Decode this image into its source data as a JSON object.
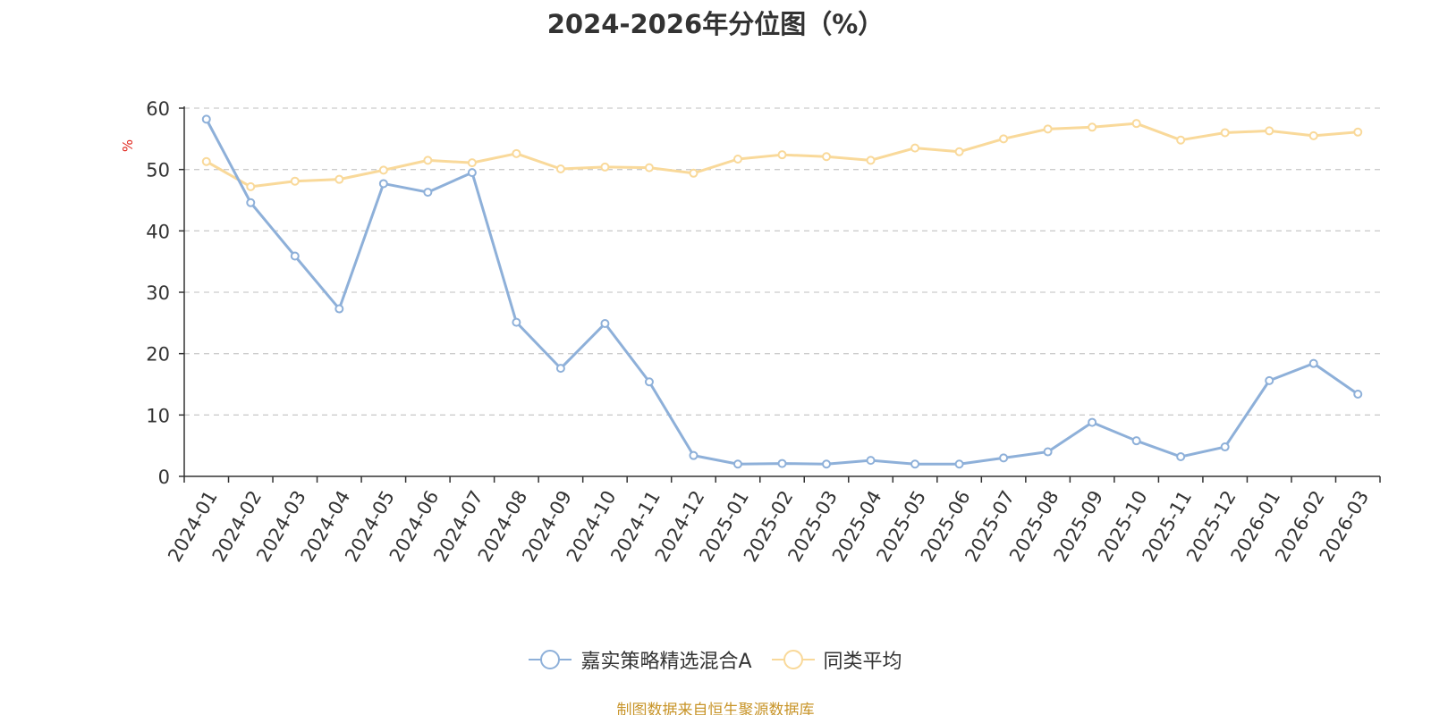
{
  "chart_data": {
    "type": "line",
    "title": "2024-2026年分位图（%）",
    "ylabel": "%",
    "xlabel": "",
    "ylim": [
      0,
      60
    ],
    "yticks": [
      0,
      10,
      20,
      30,
      40,
      50,
      60
    ],
    "grid": true,
    "legend_position": "bottom",
    "categories": [
      "2024-01",
      "2024-02",
      "2024-03",
      "2024-04",
      "2024-05",
      "2024-06",
      "2024-07",
      "2024-08",
      "2024-09",
      "2024-10",
      "2024-11",
      "2024-12",
      "2025-01",
      "2025-02",
      "2025-03",
      "2025-04",
      "2025-05",
      "2025-06",
      "2025-07",
      "2025-08",
      "2025-09",
      "2025-10",
      "2025-11",
      "2025-12",
      "2026-01",
      "2026-02",
      "2026-03"
    ],
    "series": [
      {
        "name": "嘉实策略精选混合A",
        "color": "#8eb0d9",
        "values": [
          58.2,
          44.6,
          35.9,
          27.3,
          47.7,
          46.3,
          49.5,
          25.1,
          17.6,
          24.9,
          15.4,
          3.4,
          2.0,
          2.1,
          2.0,
          2.6,
          2.0,
          2.0,
          3.0,
          4.0,
          8.8,
          5.8,
          3.2,
          4.8,
          15.6,
          18.4,
          13.4
        ]
      },
      {
        "name": "同类平均",
        "color": "#f9d99a",
        "values": [
          51.3,
          47.2,
          48.1,
          48.4,
          49.9,
          51.5,
          51.1,
          52.6,
          50.1,
          50.4,
          50.3,
          49.4,
          51.7,
          52.4,
          52.1,
          51.5,
          53.5,
          52.9,
          55.0,
          56.6,
          56.9,
          57.5,
          54.8,
          56.0,
          56.3,
          55.5,
          56.1
        ]
      }
    ]
  },
  "source": "制图数据来自恒生聚源数据库"
}
